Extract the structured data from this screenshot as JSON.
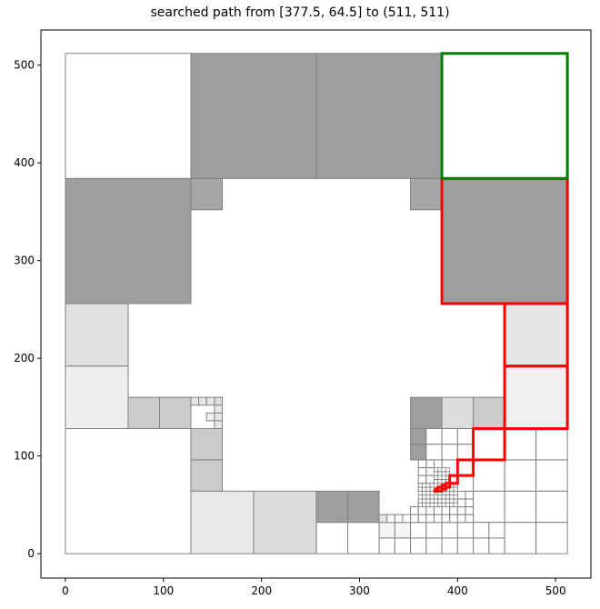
{
  "chart_data": {
    "type": "quadtree-path",
    "title": "searched path from [377.5, 64.5] to (511, 511)",
    "xlim": [
      -25,
      536
    ],
    "ylim": [
      -25,
      536
    ],
    "x_ticks": [
      0,
      100,
      200,
      300,
      400,
      500
    ],
    "y_ticks": [
      0,
      100,
      200,
      300,
      400,
      500
    ],
    "start": [
      377.5,
      64.5
    ],
    "goal": [
      511,
      511
    ],
    "colors": {
      "cell_edge": "#808080",
      "path": "#ff0000",
      "goal": "#008000",
      "dark": "#9e9e9e",
      "mid": "#a6a6a6",
      "light": "#cbcbcb",
      "lighter": "#dcdcdc",
      "pale": "#e6e6e6",
      "paler": "#eeeeee"
    },
    "cells": [
      {
        "x": 0,
        "y": 384,
        "w": 128,
        "h": 128,
        "shade": "#ffffff"
      },
      {
        "x": 128,
        "y": 384,
        "w": 128,
        "h": 128,
        "shade": "#9e9e9e"
      },
      {
        "x": 256,
        "y": 384,
        "w": 128,
        "h": 128,
        "shade": "#9e9e9e"
      },
      {
        "x": 384,
        "y": 384,
        "w": 128,
        "h": 128,
        "shade": "#ffffff"
      },
      {
        "x": 0,
        "y": 256,
        "w": 128,
        "h": 128,
        "shade": "#9e9e9e"
      },
      {
        "x": 384,
        "y": 256,
        "w": 128,
        "h": 128,
        "shade": "#9e9e9e"
      },
      {
        "x": 128,
        "y": 352,
        "w": 32,
        "h": 32,
        "shade": "#a6a6a6"
      },
      {
        "x": 352,
        "y": 352,
        "w": 32,
        "h": 32,
        "shade": "#a6a6a6"
      },
      {
        "x": 0,
        "y": 192,
        "w": 64,
        "h": 64,
        "shade": "#e0e0e0"
      },
      {
        "x": 0,
        "y": 128,
        "w": 64,
        "h": 64,
        "shade": "#eeeeee"
      },
      {
        "x": 448,
        "y": 192,
        "w": 64,
        "h": 64,
        "shade": "#e6e6e6"
      },
      {
        "x": 448,
        "y": 128,
        "w": 64,
        "h": 64,
        "shade": "#f0f0f0"
      },
      {
        "x": 64,
        "y": 128,
        "w": 32,
        "h": 32,
        "shade": "#cbcbcb"
      },
      {
        "x": 96,
        "y": 128,
        "w": 32,
        "h": 32,
        "shade": "#cbcbcb"
      },
      {
        "x": 128,
        "y": 152,
        "w": 8,
        "h": 8,
        "shade": "#e6e6e6"
      },
      {
        "x": 136,
        "y": 152,
        "w": 8,
        "h": 8,
        "shade": "#e6e6e6"
      },
      {
        "x": 144,
        "y": 152,
        "w": 8,
        "h": 8,
        "shade": "#e6e6e6"
      },
      {
        "x": 152,
        "y": 152,
        "w": 8,
        "h": 8,
        "shade": "#dcdcdc"
      },
      {
        "x": 152,
        "y": 144,
        "w": 8,
        "h": 8,
        "shade": "#e6e6e6"
      },
      {
        "x": 144,
        "y": 136,
        "w": 8,
        "h": 8,
        "shade": "#eeeeee"
      },
      {
        "x": 152,
        "y": 136,
        "w": 8,
        "h": 8,
        "shade": "#e6e6e6"
      },
      {
        "x": 152,
        "y": 128,
        "w": 8,
        "h": 8,
        "shade": "#e6e6e6"
      },
      {
        "x": 0,
        "y": 0,
        "w": 128,
        "h": 128,
        "shade": "#ffffff"
      },
      {
        "x": 128,
        "y": 96,
        "w": 32,
        "h": 32,
        "shade": "#cbcbcb"
      },
      {
        "x": 128,
        "y": 64,
        "w": 32,
        "h": 32,
        "shade": "#cbcbcb"
      },
      {
        "x": 128,
        "y": 0,
        "w": 64,
        "h": 64,
        "shade": "#e9e9e9"
      },
      {
        "x": 192,
        "y": 0,
        "w": 64,
        "h": 64,
        "shade": "#dcdcdc"
      },
      {
        "x": 256,
        "y": 32,
        "w": 32,
        "h": 32,
        "shade": "#9e9e9e"
      },
      {
        "x": 288,
        "y": 32,
        "w": 32,
        "h": 32,
        "shade": "#9e9e9e"
      },
      {
        "x": 256,
        "y": 0,
        "w": 32,
        "h": 32,
        "shade": "#ffffff"
      },
      {
        "x": 288,
        "y": 0,
        "w": 32,
        "h": 32,
        "shade": "#ffffff"
      },
      {
        "x": 352,
        "y": 128,
        "w": 32,
        "h": 32,
        "shade": "#9e9e9e"
      },
      {
        "x": 384,
        "y": 128,
        "w": 32,
        "h": 32,
        "shade": "#dcdcdc"
      },
      {
        "x": 416,
        "y": 128,
        "w": 32,
        "h": 32,
        "shade": "#cbcbcb"
      },
      {
        "x": 352,
        "y": 112,
        "w": 16,
        "h": 16,
        "shade": "#9e9e9e"
      },
      {
        "x": 352,
        "y": 96,
        "w": 16,
        "h": 16,
        "shade": "#9e9e9e"
      },
      {
        "x": 368,
        "y": 112,
        "w": 16,
        "h": 16,
        "shade": "#ffffff"
      },
      {
        "x": 368,
        "y": 96,
        "w": 16,
        "h": 16,
        "shade": "#ffffff"
      },
      {
        "x": 384,
        "y": 112,
        "w": 16,
        "h": 16,
        "shade": "#ffffff"
      },
      {
        "x": 400,
        "y": 112,
        "w": 16,
        "h": 16,
        "shade": "#ffffff"
      },
      {
        "x": 384,
        "y": 96,
        "w": 16,
        "h": 16,
        "shade": "#ffffff"
      },
      {
        "x": 400,
        "y": 96,
        "w": 16,
        "h": 16,
        "shade": "#ffffff"
      },
      {
        "x": 416,
        "y": 96,
        "w": 32,
        "h": 32,
        "shade": "#ffffff"
      },
      {
        "x": 448,
        "y": 96,
        "w": 32,
        "h": 32,
        "shade": "#ffffff"
      },
      {
        "x": 480,
        "y": 96,
        "w": 32,
        "h": 32,
        "shade": "#ffffff"
      },
      {
        "x": 448,
        "y": 64,
        "w": 32,
        "h": 32,
        "shade": "#ffffff"
      },
      {
        "x": 480,
        "y": 64,
        "w": 32,
        "h": 32,
        "shade": "#ffffff"
      },
      {
        "x": 448,
        "y": 32,
        "w": 32,
        "h": 32,
        "shade": "#ffffff"
      },
      {
        "x": 480,
        "y": 32,
        "w": 32,
        "h": 32,
        "shade": "#ffffff"
      },
      {
        "x": 448,
        "y": 0,
        "w": 32,
        "h": 32,
        "shade": "#ffffff"
      },
      {
        "x": 480,
        "y": 0,
        "w": 32,
        "h": 32,
        "shade": "#ffffff"
      },
      {
        "x": 416,
        "y": 64,
        "w": 32,
        "h": 32,
        "shade": "#ffffff"
      },
      {
        "x": 416,
        "y": 32,
        "w": 32,
        "h": 32,
        "shade": "#ffffff"
      },
      {
        "x": 416,
        "y": 16,
        "w": 16,
        "h": 16,
        "shade": "#ffffff"
      },
      {
        "x": 432,
        "y": 16,
        "w": 16,
        "h": 16,
        "shade": "#ffffff"
      },
      {
        "x": 416,
        "y": 0,
        "w": 16,
        "h": 16,
        "shade": "#ffffff"
      },
      {
        "x": 432,
        "y": 0,
        "w": 16,
        "h": 16,
        "shade": "#ffffff"
      },
      {
        "x": 320,
        "y": 16,
        "w": 16,
        "h": 16,
        "shade": "#f5f5f5"
      },
      {
        "x": 336,
        "y": 16,
        "w": 16,
        "h": 16,
        "shade": "#f5f5f5"
      },
      {
        "x": 320,
        "y": 0,
        "w": 16,
        "h": 16,
        "shade": "#ffffff"
      },
      {
        "x": 336,
        "y": 0,
        "w": 16,
        "h": 16,
        "shade": "#ffffff"
      },
      {
        "x": 352,
        "y": 16,
        "w": 16,
        "h": 16,
        "shade": "#ffffff"
      },
      {
        "x": 368,
        "y": 16,
        "w": 16,
        "h": 16,
        "shade": "#ffffff"
      },
      {
        "x": 352,
        "y": 0,
        "w": 16,
        "h": 16,
        "shade": "#ffffff"
      },
      {
        "x": 368,
        "y": 0,
        "w": 16,
        "h": 16,
        "shade": "#ffffff"
      },
      {
        "x": 384,
        "y": 16,
        "w": 16,
        "h": 16,
        "shade": "#ffffff"
      },
      {
        "x": 400,
        "y": 16,
        "w": 16,
        "h": 16,
        "shade": "#ffffff"
      },
      {
        "x": 384,
        "y": 0,
        "w": 16,
        "h": 16,
        "shade": "#ffffff"
      },
      {
        "x": 400,
        "y": 0,
        "w": 16,
        "h": 16,
        "shade": "#ffffff"
      },
      {
        "x": 320,
        "y": 32,
        "w": 8,
        "h": 8,
        "shade": "#e6e6e6"
      },
      {
        "x": 328,
        "y": 32,
        "w": 8,
        "h": 8,
        "shade": "#ffffff"
      },
      {
        "x": 336,
        "y": 32,
        "w": 8,
        "h": 8,
        "shade": "#ffffff"
      },
      {
        "x": 344,
        "y": 32,
        "w": 8,
        "h": 8,
        "shade": "#ffffff"
      },
      {
        "x": 352,
        "y": 32,
        "w": 8,
        "h": 8,
        "shade": "#ffffff"
      },
      {
        "x": 352,
        "y": 40,
        "w": 8,
        "h": 8,
        "shade": "#ffffff"
      },
      {
        "x": 360,
        "y": 32,
        "w": 8,
        "h": 8,
        "shade": "#ffffff"
      },
      {
        "x": 368,
        "y": 32,
        "w": 8,
        "h": 8,
        "shade": "#ffffff"
      },
      {
        "x": 376,
        "y": 32,
        "w": 8,
        "h": 8,
        "shade": "#ffffff"
      },
      {
        "x": 384,
        "y": 32,
        "w": 8,
        "h": 8,
        "shade": "#ffffff"
      },
      {
        "x": 392,
        "y": 32,
        "w": 8,
        "h": 8,
        "shade": "#ffffff"
      },
      {
        "x": 400,
        "y": 32,
        "w": 8,
        "h": 8,
        "shade": "#ffffff"
      },
      {
        "x": 408,
        "y": 32,
        "w": 8,
        "h": 8,
        "shade": "#ffffff"
      },
      {
        "x": 360,
        "y": 40,
        "w": 8,
        "h": 8,
        "shade": "#ffffff"
      },
      {
        "x": 368,
        "y": 40,
        "w": 8,
        "h": 8,
        "shade": "#ffffff"
      },
      {
        "x": 376,
        "y": 40,
        "w": 8,
        "h": 8,
        "shade": "#ffffff"
      },
      {
        "x": 384,
        "y": 40,
        "w": 8,
        "h": 8,
        "shade": "#ffffff"
      },
      {
        "x": 392,
        "y": 40,
        "w": 8,
        "h": 8,
        "shade": "#ffffff"
      },
      {
        "x": 400,
        "y": 40,
        "w": 8,
        "h": 8,
        "shade": "#ffffff"
      },
      {
        "x": 408,
        "y": 40,
        "w": 8,
        "h": 8,
        "shade": "#ffffff"
      },
      {
        "x": 360,
        "y": 48,
        "w": 8,
        "h": 8,
        "shade": "#ffffff"
      },
      {
        "x": 400,
        "y": 48,
        "w": 8,
        "h": 8,
        "shade": "#ffffff"
      },
      {
        "x": 408,
        "y": 48,
        "w": 8,
        "h": 8,
        "shade": "#ffffff"
      },
      {
        "x": 408,
        "y": 56,
        "w": 8,
        "h": 8,
        "shade": "#ffffff"
      },
      {
        "x": 400,
        "y": 56,
        "w": 8,
        "h": 8,
        "shade": "#ffffff"
      },
      {
        "x": 400,
        "y": 64,
        "w": 16,
        "h": 16,
        "shade": "#ffffff"
      },
      {
        "x": 384,
        "y": 80,
        "w": 16,
        "h": 16,
        "shade": "#ffffff"
      },
      {
        "x": 368,
        "y": 80,
        "w": 16,
        "h": 16,
        "shade": "#ffffff"
      },
      {
        "x": 368,
        "y": 88,
        "w": 8,
        "h": 8,
        "shade": "#ffffff"
      },
      {
        "x": 360,
        "y": 88,
        "w": 8,
        "h": 8,
        "shade": "#ffffff"
      },
      {
        "x": 360,
        "y": 80,
        "w": 8,
        "h": 8,
        "shade": "#ffffff"
      },
      {
        "x": 360,
        "y": 72,
        "w": 8,
        "h": 8,
        "shade": "#ffffff"
      },
      {
        "x": 368,
        "y": 72,
        "w": 8,
        "h": 8,
        "shade": "#ffffff"
      },
      {
        "x": 360,
        "y": 64,
        "w": 8,
        "h": 8,
        "shade": "#ffffff"
      },
      {
        "x": 400,
        "y": 80,
        "w": 16,
        "h": 16,
        "shade": "#ffffff"
      }
    ],
    "fine_region": {
      "x": 360,
      "y": 48,
      "w": 40,
      "h": 24,
      "step": 4
    },
    "fine_region_b": {
      "x": 376,
      "y": 72,
      "w": 16,
      "h": 16,
      "step": 4
    },
    "path_cells": [
      {
        "x": 384,
        "y": 256,
        "w": 128,
        "h": 128
      },
      {
        "x": 448,
        "y": 192,
        "w": 64,
        "h": 64
      },
      {
        "x": 448,
        "y": 128,
        "w": 64,
        "h": 64
      },
      {
        "x": 416,
        "y": 96,
        "w": 32,
        "h": 32
      },
      {
        "x": 400,
        "y": 80,
        "w": 16,
        "h": 16
      },
      {
        "x": 392,
        "y": 72,
        "w": 8,
        "h": 8
      },
      {
        "x": 388,
        "y": 68,
        "w": 4,
        "h": 4
      },
      {
        "x": 384,
        "y": 66,
        "w": 4,
        "h": 4
      },
      {
        "x": 380,
        "y": 64,
        "w": 4,
        "h": 4
      },
      {
        "x": 378,
        "y": 64,
        "w": 2,
        "h": 2
      }
    ],
    "goal_cell": {
      "x": 384,
      "y": 384,
      "w": 128,
      "h": 128
    }
  }
}
